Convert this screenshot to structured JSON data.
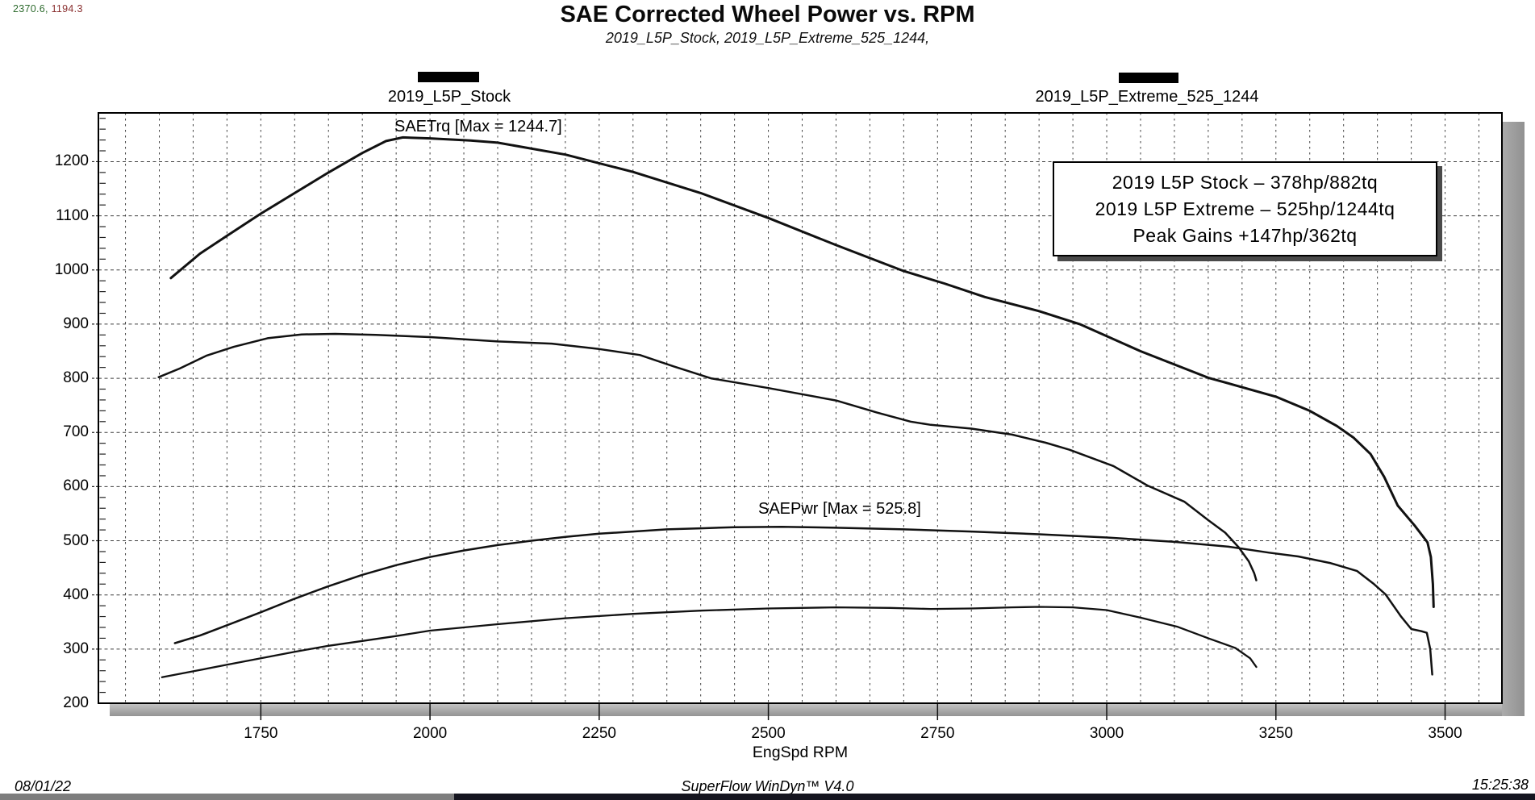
{
  "cursor_coords": {
    "x": "2370.6,",
    "y": "1194.3"
  },
  "header": {
    "title": "SAE Corrected Wheel Power vs. RPM",
    "subtitle": "2019_L5P_Stock, 2019_L5P_Extreme_525_1244,"
  },
  "legend": [
    {
      "label": "2019_L5P_Stock",
      "color": "#000000"
    },
    {
      "label": "2019_L5P_Extreme_525_1244",
      "color": "#000000"
    }
  ],
  "annotations": {
    "torque_max": "SAETrq [Max = 1244.7]",
    "power_max": "SAEPwr [Max = 525.8]"
  },
  "info_box": {
    "line1": "2019 L5P Stock – 378hp/882tq",
    "line2": "2019 L5P Extreme – 525hp/1244tq",
    "line3": "Peak Gains +147hp/362tq"
  },
  "footer": {
    "date": "08/01/22",
    "app": "SuperFlow WinDyn™ V4.0",
    "time": "15:25:38"
  },
  "chart_data": {
    "type": "line",
    "title": "SAE Corrected Wheel Power vs. RPM",
    "xlabel": "EngSpd RPM",
    "ylabel": "",
    "xlim": [
      1510,
      3584
    ],
    "ylim": [
      200,
      1290
    ],
    "xticks": [
      1750,
      2000,
      2250,
      2500,
      2750,
      3000,
      3250,
      3500
    ],
    "yticks": [
      200,
      300,
      400,
      500,
      600,
      700,
      800,
      900,
      1000,
      1100,
      1200
    ],
    "grid": {
      "minor_x_step": 50,
      "major_y_step": 100,
      "style": "dashed"
    },
    "legend_position": "top",
    "line_color": "#111111",
    "series": [
      {
        "name": "2019_L5P_Extreme_525_1244 SAETrq (lb-ft)",
        "max": 1244.7,
        "points": [
          [
            1617,
            985
          ],
          [
            1660,
            1030
          ],
          [
            1700,
            1063
          ],
          [
            1750,
            1104
          ],
          [
            1800,
            1142
          ],
          [
            1850,
            1180
          ],
          [
            1900,
            1216
          ],
          [
            1935,
            1238
          ],
          [
            1960,
            1244.7
          ],
          [
            2000,
            1243
          ],
          [
            2060,
            1239
          ],
          [
            2100,
            1235
          ],
          [
            2200,
            1213
          ],
          [
            2300,
            1181
          ],
          [
            2400,
            1142
          ],
          [
            2500,
            1096
          ],
          [
            2600,
            1046
          ],
          [
            2700,
            998
          ],
          [
            2760,
            975
          ],
          [
            2820,
            950
          ],
          [
            2900,
            924
          ],
          [
            2960,
            900
          ],
          [
            3050,
            850
          ],
          [
            3150,
            801
          ],
          [
            3250,
            766
          ],
          [
            3300,
            740
          ],
          [
            3340,
            712
          ],
          [
            3365,
            690
          ],
          [
            3390,
            660
          ],
          [
            3410,
            618
          ],
          [
            3430,
            565
          ],
          [
            3455,
            528
          ],
          [
            3474,
            497
          ],
          [
            3479,
            470
          ],
          [
            3482,
            420
          ],
          [
            3483,
            378
          ]
        ]
      },
      {
        "name": "2019_L5P_Stock SAETrq (lb-ft)",
        "max": 882,
        "points": [
          [
            1599,
            802
          ],
          [
            1630,
            818
          ],
          [
            1670,
            842
          ],
          [
            1710,
            858
          ],
          [
            1760,
            874
          ],
          [
            1810,
            881
          ],
          [
            1860,
            882
          ],
          [
            1920,
            880
          ],
          [
            2000,
            876
          ],
          [
            2100,
            868
          ],
          [
            2180,
            864
          ],
          [
            2250,
            854
          ],
          [
            2310,
            843
          ],
          [
            2360,
            822
          ],
          [
            2415,
            800
          ],
          [
            2500,
            782
          ],
          [
            2600,
            759
          ],
          [
            2660,
            737
          ],
          [
            2710,
            720
          ],
          [
            2740,
            714
          ],
          [
            2800,
            707
          ],
          [
            2860,
            696
          ],
          [
            2910,
            681
          ],
          [
            2945,
            668
          ],
          [
            3010,
            638
          ],
          [
            3060,
            602
          ],
          [
            3115,
            572
          ],
          [
            3150,
            538
          ],
          [
            3175,
            515
          ],
          [
            3195,
            488
          ],
          [
            3210,
            462
          ],
          [
            3218,
            440
          ],
          [
            3221,
            427
          ]
        ]
      },
      {
        "name": "2019_L5P_Extreme_525_1244 SAEPwr (hp)",
        "max": 525.8,
        "points": [
          [
            1623,
            311
          ],
          [
            1660,
            325
          ],
          [
            1700,
            344
          ],
          [
            1750,
            368
          ],
          [
            1800,
            393
          ],
          [
            1850,
            416
          ],
          [
            1900,
            437
          ],
          [
            1950,
            455
          ],
          [
            2000,
            470
          ],
          [
            2050,
            482
          ],
          [
            2100,
            492
          ],
          [
            2150,
            500
          ],
          [
            2200,
            507
          ],
          [
            2250,
            513
          ],
          [
            2300,
            517
          ],
          [
            2350,
            521
          ],
          [
            2400,
            523
          ],
          [
            2450,
            525
          ],
          [
            2520,
            525.8
          ],
          [
            2600,
            524
          ],
          [
            2700,
            521
          ],
          [
            2800,
            517
          ],
          [
            2900,
            512
          ],
          [
            3000,
            506
          ],
          [
            3100,
            498
          ],
          [
            3180,
            489
          ],
          [
            3240,
            478
          ],
          [
            3283,
            471
          ],
          [
            3330,
            459
          ],
          [
            3370,
            444
          ],
          [
            3395,
            420
          ],
          [
            3412,
            401
          ],
          [
            3435,
            360
          ],
          [
            3450,
            337
          ],
          [
            3465,
            333
          ],
          [
            3473,
            330
          ],
          [
            3478,
            300
          ],
          [
            3481,
            253
          ]
        ]
      },
      {
        "name": "2019_L5P_Stock SAEPwr (hp)",
        "max": 378,
        "points": [
          [
            1604,
            248
          ],
          [
            1650,
            259
          ],
          [
            1700,
            271
          ],
          [
            1750,
            283
          ],
          [
            1800,
            295
          ],
          [
            1850,
            306
          ],
          [
            1900,
            315
          ],
          [
            1950,
            324
          ],
          [
            2000,
            334
          ],
          [
            2100,
            346
          ],
          [
            2200,
            357
          ],
          [
            2300,
            365
          ],
          [
            2400,
            371
          ],
          [
            2500,
            375
          ],
          [
            2600,
            377
          ],
          [
            2680,
            376
          ],
          [
            2740,
            374
          ],
          [
            2800,
            375
          ],
          [
            2860,
            377
          ],
          [
            2900,
            378
          ],
          [
            2950,
            377
          ],
          [
            3000,
            372
          ],
          [
            3050,
            358
          ],
          [
            3105,
            341
          ],
          [
            3150,
            320
          ],
          [
            3190,
            302
          ],
          [
            3212,
            283
          ],
          [
            3221,
            267
          ]
        ]
      }
    ]
  }
}
